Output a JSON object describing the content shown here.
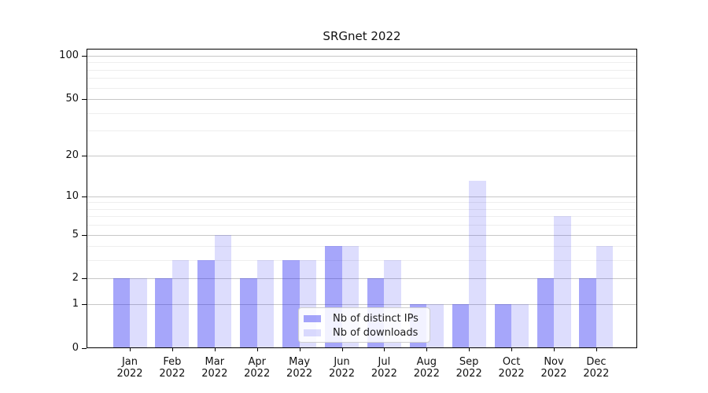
{
  "chart_data": {
    "type": "bar",
    "title": "SRGnet 2022",
    "categories": [
      "Jan 2022",
      "Feb 2022",
      "Mar 2022",
      "Apr 2022",
      "May 2022",
      "Jun 2022",
      "Jul 2022",
      "Aug 2022",
      "Sep 2022",
      "Oct 2022",
      "Nov 2022",
      "Dec 2022"
    ],
    "series": [
      {
        "name": "Nb of distinct IPs",
        "values": [
          2,
          2,
          3,
          2,
          3,
          4,
          2,
          1,
          1,
          1,
          2,
          2
        ],
        "color": "rgba(42,42,242,0.42)"
      },
      {
        "name": "Nb of downloads",
        "values": [
          2,
          3,
          5,
          3,
          3,
          4,
          3,
          1,
          13,
          1,
          7,
          4
        ],
        "color": "rgba(42,42,242,0.16)"
      }
    ],
    "yscale": "log1p",
    "ylim": [
      0,
      112
    ],
    "yticks": [
      0,
      1,
      2,
      5,
      10,
      20,
      50,
      100
    ],
    "yticks_minor": [
      3,
      4,
      6,
      7,
      8,
      9,
      30,
      40,
      60,
      70,
      80,
      90
    ],
    "xlabel": "",
    "ylabel": "",
    "grid": "horizontal",
    "legend_position": "lower center",
    "colors": {
      "grid_major": "rgba(0,0,0,0.22)",
      "grid_minor": "rgba(0,0,0,0.065)",
      "axis": "#000000",
      "background": "#ffffff"
    }
  }
}
